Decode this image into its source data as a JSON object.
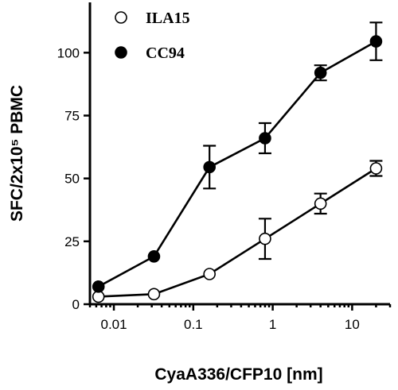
{
  "chart_data": {
    "type": "line",
    "xlabel": "CyaA336/CFP10 [nm]",
    "ylabel": "SFC/2x10⁵ PBMC",
    "x_scale": "log",
    "xlim": [
      0.005,
      30
    ],
    "ylim": [
      0,
      120
    ],
    "x_ticks": [
      0.01,
      0.1,
      1,
      10
    ],
    "x_tick_labels": [
      "0.01",
      "0.1",
      "1",
      "10"
    ],
    "y_ticks": [
      0,
      25,
      50,
      75,
      100
    ],
    "y_tick_labels": [
      "0",
      "25",
      "50",
      "75",
      "100"
    ],
    "legend_position": "top-left",
    "x": [
      0.0064,
      0.032,
      0.16,
      0.8,
      4,
      20
    ],
    "series": [
      {
        "name": "ILA15",
        "marker": "open-circle",
        "values": [
          3,
          4,
          12,
          26,
          40,
          54
        ],
        "err": [
          0,
          0,
          0,
          8,
          4,
          3
        ]
      },
      {
        "name": "CC94",
        "marker": "filled-circle",
        "values": [
          7,
          19,
          54.5,
          66,
          92,
          104.5
        ],
        "err": [
          0,
          0,
          8.5,
          6,
          3,
          7.5
        ]
      }
    ]
  }
}
